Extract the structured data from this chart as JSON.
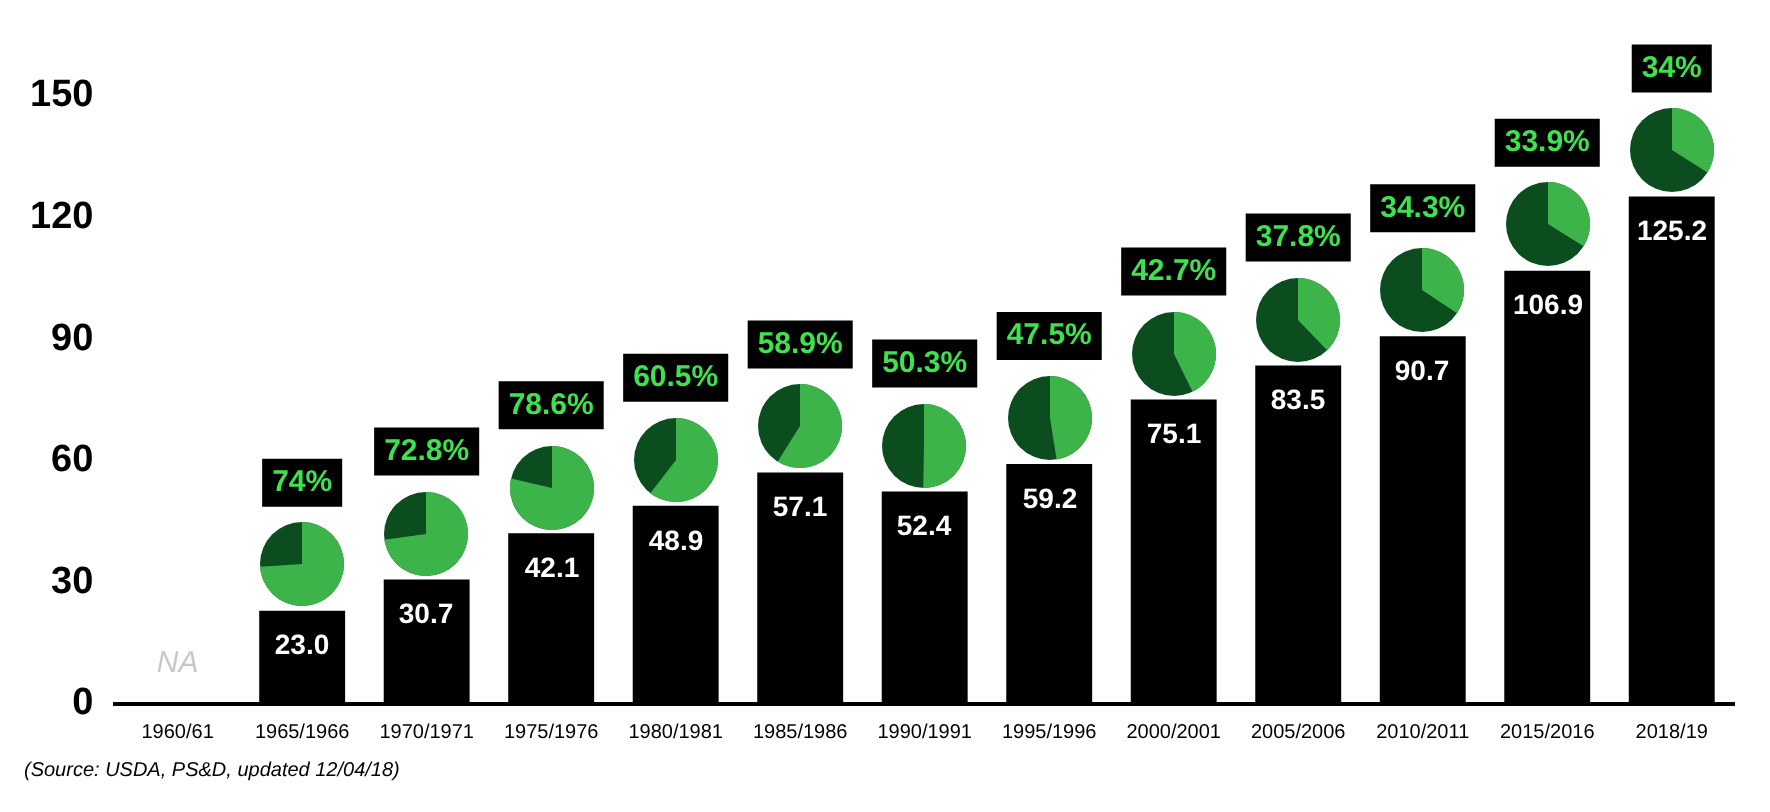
{
  "chart_data": {
    "type": "bar",
    "categories": [
      "1960/61",
      "1965/1966",
      "1970/1971",
      "1975/1976",
      "1980/1981",
      "1985/1986",
      "1990/1991",
      "1995/1996",
      "2000/2001",
      "2005/2006",
      "2010/2011",
      "2015/2016",
      "2018/19"
    ],
    "values": [
      null,
      23.0,
      30.7,
      42.1,
      48.9,
      57.1,
      52.4,
      59.2,
      75.1,
      83.5,
      90.7,
      106.9,
      125.2
    ],
    "value_labels": [
      "NA",
      "23.0",
      "30.7",
      "42.1",
      "48.9",
      "57.1",
      "52.4",
      "59.2",
      "75.1",
      "83.5",
      "90.7",
      "106.9",
      "125.2"
    ],
    "color": "#000000",
    "ylim": [
      0,
      150
    ],
    "yticks": [
      0,
      30,
      60,
      90,
      120,
      150
    ],
    "grid": false,
    "legend": false,
    "annotations": [
      "74%",
      "72.8%",
      "78.6%",
      "60.5%",
      "58.9%",
      "50.3%",
      "47.5%",
      "42.7%",
      "37.8%",
      "34.3%",
      "33.9%",
      "34%",
      "(Source: USDA, PS&D, updated 12/04/18)"
    ]
  }
}
